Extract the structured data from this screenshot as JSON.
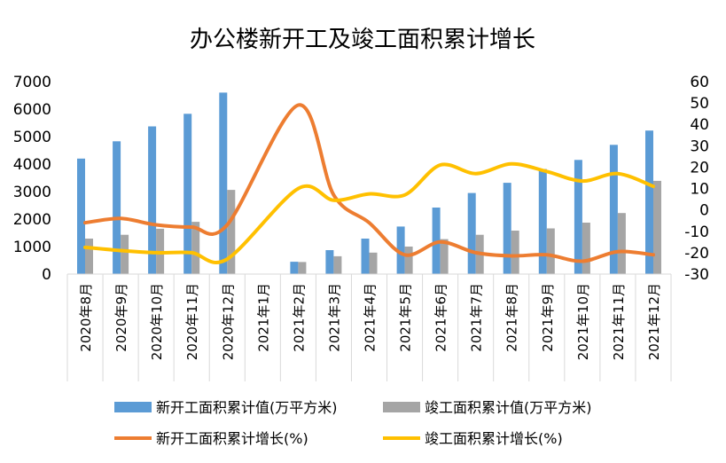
{
  "chart_data": {
    "type": "bar",
    "title": "办公楼新开工及竣工面积累计增长",
    "categories": [
      "2020年8月",
      "2020年9月",
      "2020年10月",
      "2020年11月",
      "2020年12月",
      "2021年1月",
      "2021年2月",
      "2021年3月",
      "2021年4月",
      "2021年5月",
      "2021年6月",
      "2021年7月",
      "2021年8月",
      "2021年9月",
      "2021年10月",
      "2021年11月",
      "2021年12月"
    ],
    "y_left": {
      "min": 0,
      "max": 7000,
      "ticks": [
        "0",
        "1000",
        "2000",
        "3000",
        "4000",
        "5000",
        "6000",
        "7000"
      ]
    },
    "y_right": {
      "min": -30,
      "max": 60,
      "ticks": [
        "-30",
        "-20",
        "-10",
        "0",
        "10",
        "20",
        "30",
        "40",
        "50",
        "60"
      ]
    },
    "series": [
      {
        "name": "新开工面积累计值(万平方米)",
        "type": "bar",
        "axis": "left",
        "color": "#5B9BD5",
        "values": [
          4200,
          4830,
          5370,
          5830,
          6600,
          null,
          450,
          870,
          1290,
          1730,
          2420,
          2950,
          3320,
          3820,
          4150,
          4700,
          5220
        ]
      },
      {
        "name": "竣工面积累计值(万平方米)",
        "type": "bar",
        "axis": "left",
        "color": "#A5A5A5",
        "values": [
          1290,
          1430,
          1650,
          1900,
          3060,
          null,
          440,
          650,
          780,
          1000,
          1270,
          1430,
          1580,
          1660,
          1870,
          2220,
          3390
        ]
      },
      {
        "name": "新开工面积累计增长(%)",
        "type": "line",
        "axis": "right",
        "color": "#ED7D31",
        "values": [
          -6,
          -4,
          -7,
          -8,
          -7,
          null,
          49,
          7,
          -6,
          -21,
          -15,
          -20,
          -21.5,
          -21,
          -24,
          -19.5,
          -21
        ]
      },
      {
        "name": "竣工面积累计增长(%)",
        "type": "line",
        "axis": "right",
        "color": "#FFC000",
        "values": [
          -17.5,
          -19,
          -20,
          -20,
          -23,
          null,
          10,
          4.5,
          7.5,
          7,
          21,
          17,
          21.5,
          18,
          13.5,
          17,
          11
        ]
      }
    ],
    "legend_position": "bottom",
    "grid": false
  }
}
